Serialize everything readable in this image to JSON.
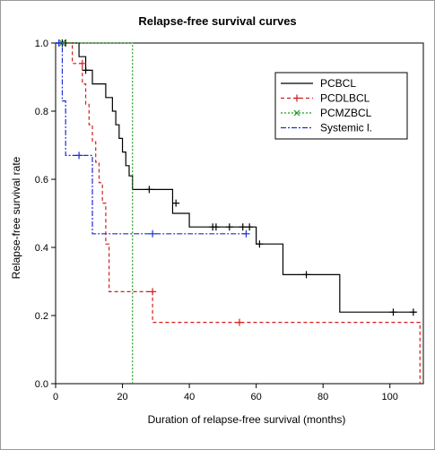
{
  "chart_data": {
    "type": "line",
    "title": "Relapse-free survival curves",
    "xlabel": "Duration of relapse-free survival (months)",
    "ylabel": "Relapse-free survival rate",
    "xlim": [
      0,
      110
    ],
    "ylim": [
      0,
      1.0
    ],
    "x_ticks": [
      "0",
      "20",
      "40",
      "60",
      "80",
      "100"
    ],
    "y_ticks": [
      "0.0",
      "0.2",
      "0.4",
      "0.6",
      "0.8",
      "1.0"
    ],
    "legend_position": "top-right",
    "series": [
      {
        "name": "PCBCL",
        "color": "#000000",
        "dash": "",
        "marker": "plus",
        "steps": [
          [
            0,
            1.0
          ],
          [
            7,
            0.96
          ],
          [
            9,
            0.92
          ],
          [
            11,
            0.88
          ],
          [
            15,
            0.84
          ],
          [
            17,
            0.8
          ],
          [
            18,
            0.76
          ],
          [
            19,
            0.72
          ],
          [
            20,
            0.68
          ],
          [
            21,
            0.64
          ],
          [
            22,
            0.61
          ],
          [
            23,
            0.57
          ],
          [
            35,
            0.5
          ],
          [
            40,
            0.46
          ],
          [
            60,
            0.41
          ],
          [
            68,
            0.32
          ],
          [
            85,
            0.21
          ],
          [
            108,
            0.21
          ]
        ],
        "censored": [
          [
            2,
            1.0
          ],
          [
            3,
            1.0
          ],
          [
            9,
            0.92
          ],
          [
            28,
            0.57
          ],
          [
            36,
            0.53
          ],
          [
            47,
            0.46
          ],
          [
            48,
            0.46
          ],
          [
            52,
            0.46
          ],
          [
            56,
            0.46
          ],
          [
            58,
            0.46
          ],
          [
            61,
            0.41
          ],
          [
            75,
            0.32
          ],
          [
            101,
            0.21
          ],
          [
            107,
            0.21
          ]
        ]
      },
      {
        "name": "PCDLBCL",
        "color": "#d11f1f",
        "dash": "4,3",
        "marker": "plus",
        "steps": [
          [
            0,
            1.0
          ],
          [
            5,
            0.94
          ],
          [
            8,
            0.88
          ],
          [
            9,
            0.82
          ],
          [
            10,
            0.76
          ],
          [
            11,
            0.71
          ],
          [
            12,
            0.65
          ],
          [
            13,
            0.59
          ],
          [
            14,
            0.53
          ],
          [
            15,
            0.41
          ],
          [
            16,
            0.27
          ],
          [
            29,
            0.18
          ],
          [
            109,
            0.0
          ]
        ],
        "censored": [
          [
            8,
            0.94
          ],
          [
            29,
            0.27
          ],
          [
            55,
            0.18
          ]
        ]
      },
      {
        "name": "PCMZBCL",
        "color": "#1f9a1f",
        "dash": "2,2",
        "marker": "x",
        "steps": [
          [
            0,
            1.0
          ],
          [
            23,
            0.0
          ]
        ],
        "censored": [
          [
            2,
            1.0
          ]
        ]
      },
      {
        "name": "Systemic l.",
        "color": "#1f2fd1",
        "dash": "6,2,2,2",
        "marker": "plus",
        "steps": [
          [
            0,
            1.0
          ],
          [
            2,
            0.83
          ],
          [
            3,
            0.67
          ],
          [
            11,
            0.44
          ],
          [
            58,
            0.44
          ]
        ],
        "censored": [
          [
            1,
            1.0
          ],
          [
            7,
            0.67
          ],
          [
            29,
            0.44
          ],
          [
            57,
            0.44
          ]
        ]
      }
    ]
  }
}
